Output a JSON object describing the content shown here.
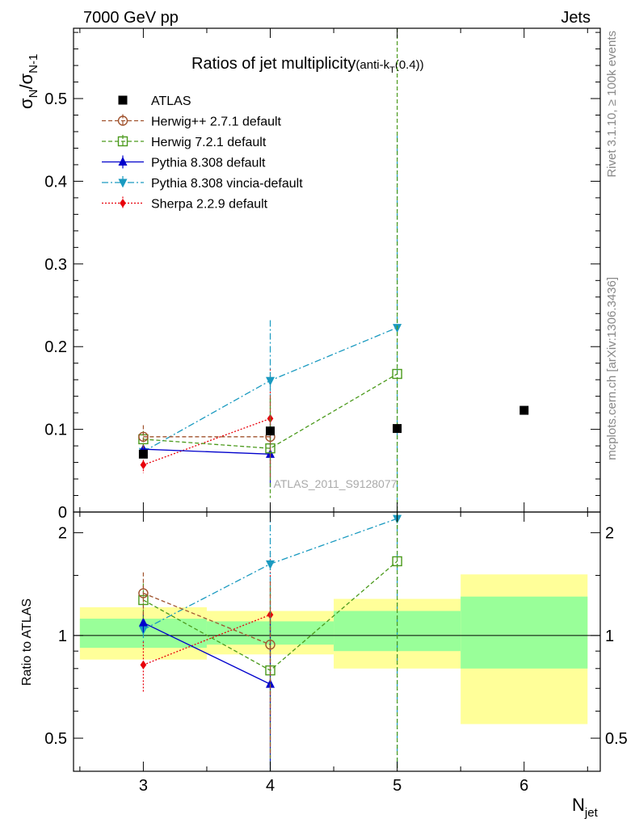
{
  "header": {
    "left": "7000 GeV pp",
    "right": "Jets"
  },
  "side_labels": {
    "rivet": "Rivet 3.1.10, ≥ 100k events",
    "mcplots": "mcplots.cern.ch [arXiv:1306.3436]"
  },
  "watermark": "ATLAS_2011_S9128077",
  "chart_data": [
    {
      "type": "scatter",
      "panel": "main",
      "title": "Ratios of jet multiplicity",
      "title_suffix": "(anti-k",
      "title_suffix_sub": "T",
      "title_suffix_end": "(0.4))",
      "ylabel": "σ_N/σ_N-1",
      "ylabel_main": "σ",
      "ylabel_sub1": "N",
      "ylabel_slash": "/σ",
      "ylabel_sub2": "N-1",
      "xlim": [
        2.45,
        6.6
      ],
      "ylim": [
        0,
        0.585
      ],
      "yticks": [
        0,
        0.1,
        0.2,
        0.3,
        0.4,
        0.5
      ],
      "ytick_labels": [
        "0",
        "0.1",
        "0.2",
        "0.3",
        "0.4",
        "0.5"
      ],
      "series": [
        {
          "name": "ATLAS",
          "color": "#000000",
          "marker": "square",
          "line": "none",
          "x": [
            3,
            4,
            5,
            6
          ],
          "y": [
            0.07,
            0.098,
            0.101,
            0.123
          ]
        },
        {
          "name": "Herwig++ 2.7.1 default",
          "color": "#a0522d",
          "marker": "circle-open",
          "line": "dashed",
          "x": [
            3,
            4
          ],
          "y": [
            0.091,
            0.091
          ],
          "err": [
            0.014,
            0.05
          ]
        },
        {
          "name": "Herwig 7.2.1 default",
          "color": "#4b9a1c",
          "marker": "square-open",
          "line": "dashed",
          "x": [
            3,
            4,
            5
          ],
          "y": [
            0.088,
            0.077,
            0.167
          ],
          "err": [
            0.01,
            0.06,
            0.5
          ]
        },
        {
          "name": "Pythia 8.308 default",
          "color": "#0000cc",
          "marker": "triangle-up",
          "line": "solid",
          "x": [
            3,
            4
          ],
          "y": [
            0.076,
            0.07
          ],
          "err": [
            0.005,
            0.04
          ]
        },
        {
          "name": "Pythia 8.308 vincia-default",
          "color": "#1a9ac0",
          "marker": "triangle-down",
          "line": "dashdot",
          "x": [
            3,
            4,
            5
          ],
          "y": [
            0.073,
            0.159,
            0.223
          ],
          "err": [
            0.006,
            0.073,
            0.232
          ]
        },
        {
          "name": "Sherpa 2.2.9 default",
          "color": "#e8000b",
          "marker": "diamond",
          "line": "dotted",
          "x": [
            3,
            4
          ],
          "y": [
            0.057,
            0.113
          ],
          "err": [
            0.01,
            0.06
          ]
        }
      ]
    },
    {
      "type": "scatter",
      "panel": "ratio",
      "ylabel": "Ratio to ATLAS",
      "xlabel": "N_jet",
      "xlabel_main": "N",
      "xlabel_sub": "jet",
      "ylim": [
        0.4,
        2.3
      ],
      "yticks": [
        0.5,
        1,
        2
      ],
      "ytick_labels": [
        "0.5",
        "1",
        "2"
      ],
      "xticks": [
        3,
        4,
        5,
        6
      ],
      "xtick_labels": [
        "3",
        "4",
        "5",
        "6"
      ],
      "bands": [
        {
          "x0": 2.5,
          "x1": 3.5,
          "yellow": [
            0.85,
            1.21
          ],
          "green": [
            0.92,
            1.12
          ]
        },
        {
          "x0": 3.5,
          "x1": 4.5,
          "yellow": [
            0.88,
            1.18
          ],
          "green": [
            0.94,
            1.1
          ]
        },
        {
          "x0": 4.5,
          "x1": 5.5,
          "yellow": [
            0.8,
            1.28
          ],
          "green": [
            0.9,
            1.18
          ]
        },
        {
          "x0": 5.5,
          "x1": 6.5,
          "yellow": [
            0.55,
            1.51
          ],
          "green": [
            0.8,
            1.3
          ]
        }
      ],
      "series": [
        {
          "name": "Herwig++ 2.7.1 default",
          "x": [
            3,
            4
          ],
          "y": [
            1.33,
            0.94
          ],
          "err": [
            0.2,
            0.5
          ]
        },
        {
          "name": "Herwig 7.2.1 default",
          "x": [
            3,
            4,
            5
          ],
          "y": [
            1.27,
            0.79,
            1.65
          ],
          "err": [
            0.15,
            0.6,
            2.0
          ]
        },
        {
          "name": "Pythia 8.308 default",
          "x": [
            3,
            4
          ],
          "y": [
            1.09,
            0.72
          ],
          "err": [
            0.07,
            0.4
          ]
        },
        {
          "name": "Pythia 8.308 vincia-default",
          "x": [
            3,
            4,
            5
          ],
          "y": [
            1.04,
            1.62,
            2.2
          ],
          "err": [
            0.08,
            0.75,
            2.3
          ]
        },
        {
          "name": "Sherpa 2.2.9 default",
          "x": [
            3,
            4
          ],
          "y": [
            0.82,
            1.15
          ],
          "err": [
            0.14,
            0.6
          ]
        }
      ]
    }
  ]
}
